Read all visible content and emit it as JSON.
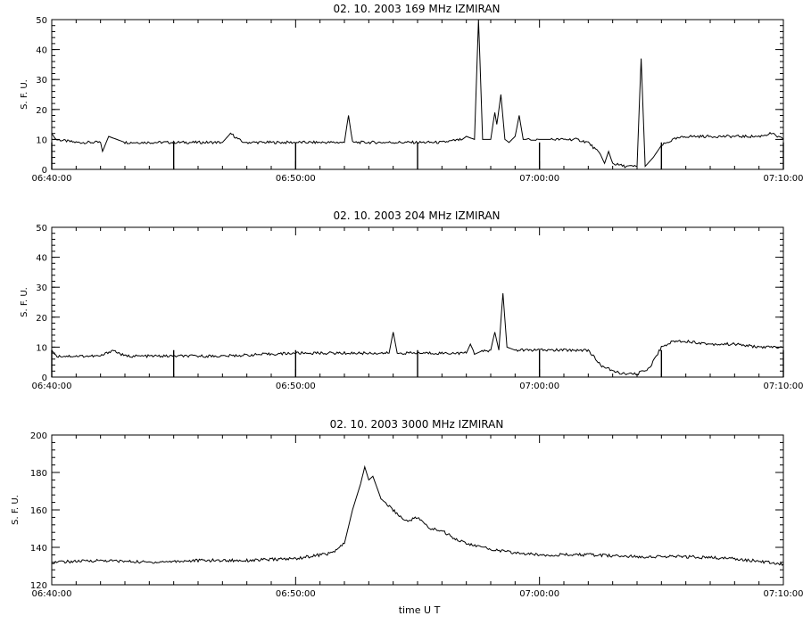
{
  "chart_data": [
    {
      "type": "line",
      "title": "02.  10.  2003    169 MHz    IZMIRAN",
      "ylabel": "S. F. U.",
      "xlabel": "",
      "xlim": [
        "06:40:00",
        "07:10:00"
      ],
      "ylim": [
        0,
        50
      ],
      "yticks": [
        0,
        10,
        20,
        30,
        40,
        50
      ],
      "xticks": [
        "06:40:00",
        "06:50:00",
        "07:00:00",
        "07:10:00"
      ],
      "grid": false,
      "series": [
        {
          "x": [
            "06:40:00",
            "06:40:10",
            "06:41:00",
            "06:42:00",
            "06:42:05",
            "06:42:20",
            "06:42:40",
            "06:43:00",
            "06:44:00",
            "06:45:00",
            "06:46:00",
            "06:47:00",
            "06:47:20",
            "06:47:50",
            "06:48:00",
            "06:49:00",
            "06:50:00",
            "06:51:00",
            "06:52:00",
            "06:52:10",
            "06:52:20",
            "06:53:00",
            "06:54:00",
            "06:55:00",
            "06:56:00",
            "06:56:50",
            "06:57:00",
            "06:57:20",
            "06:57:30",
            "06:57:40",
            "06:58:00",
            "06:58:10",
            "06:58:15",
            "06:58:25",
            "06:58:35",
            "06:58:45",
            "06:59:00",
            "06:59:10",
            "06:59:20",
            "06:59:30",
            "07:00:00",
            "07:00:10",
            "07:00:30",
            "07:01:00",
            "07:01:30",
            "07:02:00",
            "07:02:30",
            "07:02:40",
            "07:02:50",
            "07:03:00",
            "07:03:30",
            "07:04:00",
            "07:04:10",
            "07:04:20",
            "07:04:40",
            "07:05:00",
            "07:05:30",
            "07:06:00",
            "07:07:00",
            "07:08:00",
            "07:09:00",
            "07:09:30",
            "07:10:00"
          ],
          "values": [
            12,
            10,
            9,
            9,
            6,
            11,
            10,
            9,
            9,
            9,
            9,
            9,
            12,
            9,
            9,
            9,
            9,
            9,
            9,
            18,
            9,
            9,
            9,
            9,
            9,
            10,
            11,
            10,
            50,
            10,
            10,
            19,
            15,
            25,
            10,
            9,
            11,
            18,
            10,
            10,
            10,
            10,
            10,
            10,
            10,
            9,
            5,
            2,
            6,
            2,
            1,
            1,
            37,
            1,
            4,
            8,
            10,
            11,
            11,
            11,
            11,
            12,
            10
          ]
        }
      ],
      "spikes_down": [
        "06:40:00",
        "06:45:00",
        "06:50:00",
        "06:55:00",
        "07:00:00",
        "07:05:00",
        "07:10:00"
      ]
    },
    {
      "type": "line",
      "title": "02.  10.  2003    204 MHz    IZMIRAN",
      "ylabel": "S. F. U.",
      "xlabel": "",
      "xlim": [
        "06:40:00",
        "07:10:00"
      ],
      "ylim": [
        0,
        50
      ],
      "yticks": [
        0,
        10,
        20,
        30,
        40,
        50
      ],
      "xticks": [
        "06:40:00",
        "06:50:00",
        "07:00:00",
        "07:10:00"
      ],
      "grid": false,
      "series": [
        {
          "x": [
            "06:40:00",
            "06:40:10",
            "06:42:00",
            "06:42:30",
            "06:43:00",
            "06:45:00",
            "06:47:00",
            "06:50:00",
            "06:52:00",
            "06:53:00",
            "06:53:50",
            "06:54:00",
            "06:54:10",
            "06:55:00",
            "06:56:00",
            "06:57:00",
            "06:57:10",
            "06:57:20",
            "06:58:00",
            "06:58:10",
            "06:58:20",
            "06:58:30",
            "06:58:40",
            "06:59:00",
            "07:00:00",
            "07:01:00",
            "07:02:00",
            "07:02:30",
            "07:03:00",
            "07:03:30",
            "07:04:00",
            "07:04:30",
            "07:05:00",
            "07:05:30",
            "07:06:00",
            "07:07:00",
            "07:08:00",
            "07:09:00",
            "07:10:00"
          ],
          "values": [
            9,
            7,
            7,
            9,
            7,
            7,
            7,
            8,
            8,
            8,
            8,
            15,
            8,
            8,
            8,
            8,
            11,
            8,
            9,
            15,
            9,
            28,
            10,
            9,
            9,
            9,
            9,
            4,
            2,
            1,
            1,
            3,
            10,
            12,
            12,
            11,
            11,
            10,
            10
          ]
        }
      ],
      "spikes_down": [
        "06:40:00",
        "06:45:00",
        "06:50:00",
        "06:55:00",
        "07:00:00",
        "07:05:00",
        "07:10:00"
      ]
    },
    {
      "type": "line",
      "title": "02.  10.  2003    3000 MHz    IZMIRAN",
      "ylabel": "S. F. U.",
      "xlabel": "time  U T",
      "xlim": [
        "06:40:00",
        "07:10:00"
      ],
      "ylim": [
        120,
        200
      ],
      "yticks": [
        120,
        140,
        160,
        180,
        200
      ],
      "xticks": [
        "06:40:00",
        "06:50:00",
        "07:00:00",
        "07:10:00"
      ],
      "grid": false,
      "series": [
        {
          "x": [
            "06:40:00",
            "06:42:00",
            "06:44:00",
            "06:46:00",
            "06:48:00",
            "06:50:00",
            "06:51:00",
            "06:51:30",
            "06:52:00",
            "06:52:20",
            "06:52:40",
            "06:52:50",
            "06:53:00",
            "06:53:10",
            "06:53:30",
            "06:54:00",
            "06:54:30",
            "06:55:00",
            "06:55:30",
            "06:56:00",
            "06:56:30",
            "06:57:00",
            "06:58:00",
            "06:59:00",
            "07:00:00",
            "07:02:00",
            "07:04:00",
            "07:06:00",
            "07:08:00",
            "07:10:00"
          ],
          "values": [
            132,
            133,
            132,
            133,
            133,
            134,
            136,
            137,
            142,
            160,
            174,
            183,
            176,
            178,
            166,
            160,
            154,
            156,
            150,
            149,
            145,
            142,
            139,
            137,
            136,
            136,
            135,
            135,
            134,
            131
          ]
        }
      ]
    }
  ]
}
